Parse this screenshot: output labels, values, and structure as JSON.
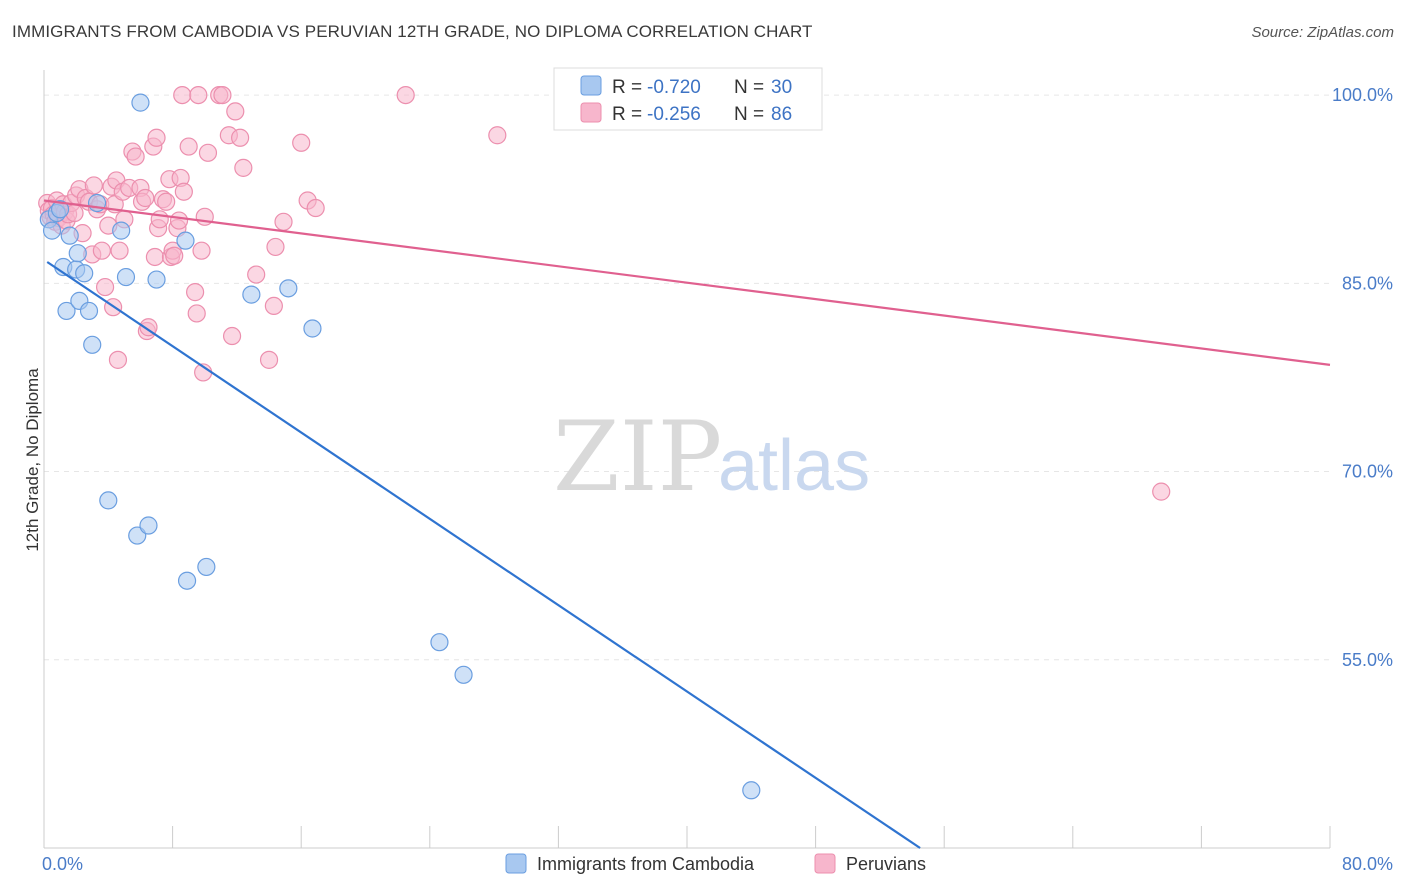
{
  "header": {
    "title": "IMMIGRANTS FROM CAMBODIA VS PERUVIAN 12TH GRADE, NO DIPLOMA CORRELATION CHART",
    "source": "Source: ZipAtlas.com"
  },
  "watermark": {
    "zip": "ZIP",
    "atlas": "atlas"
  },
  "legend_top": [
    {
      "r_label": "R = ",
      "r_value": "-0.720",
      "n_label": "N = ",
      "n_value": "30"
    },
    {
      "r_label": "R = ",
      "r_value": "-0.256",
      "n_label": "N = ",
      "n_value": "86"
    }
  ],
  "legend_bottom": [
    "Immigrants from Cambodia",
    "Peruvians"
  ],
  "colors": {
    "cambodia_fill": "#a8c8f0",
    "cambodia_stroke": "#6a9ee0",
    "cambodia_line": "#2f74d0",
    "peru_fill": "#f7b6cc",
    "peru_stroke": "#ec8fae",
    "peru_line": "#e0608f",
    "grid": "#e6e6e6",
    "tick_label": "#4a7cc8"
  },
  "chart_data": {
    "type": "scatter",
    "xlabel": "",
    "ylabel": "12th Grade, No Diploma",
    "xlim": [
      0,
      80
    ],
    "ylim": [
      40,
      102
    ],
    "x_tick_labels": [
      {
        "value": 0,
        "label": "0.0%"
      },
      {
        "value": 80,
        "label": "80.0%"
      }
    ],
    "y_tick_labels": [
      {
        "value": 100,
        "label": "100.0%"
      },
      {
        "value": 85,
        "label": "85.0%"
      },
      {
        "value": 70,
        "label": "70.0%"
      },
      {
        "value": 55,
        "label": "55.0%"
      }
    ],
    "legend_position": "top-center",
    "series": [
      {
        "name": "Immigrants from Cambodia",
        "r": -0.72,
        "n": 30,
        "trend": {
          "x": [
            0.2,
            54.5
          ],
          "y": [
            86.7,
            40
          ]
        },
        "points": [
          {
            "x": 0.3,
            "y": 90.1
          },
          {
            "x": 0.5,
            "y": 89.2
          },
          {
            "x": 0.8,
            "y": 90.6
          },
          {
            "x": 1.0,
            "y": 90.9
          },
          {
            "x": 1.2,
            "y": 86.3
          },
          {
            "x": 1.4,
            "y": 82.8
          },
          {
            "x": 1.6,
            "y": 88.8
          },
          {
            "x": 2.0,
            "y": 86.1
          },
          {
            "x": 2.1,
            "y": 87.4
          },
          {
            "x": 2.2,
            "y": 83.6
          },
          {
            "x": 2.5,
            "y": 85.8
          },
          {
            "x": 2.8,
            "y": 82.8
          },
          {
            "x": 3.0,
            "y": 80.1
          },
          {
            "x": 3.3,
            "y": 91.4
          },
          {
            "x": 4.0,
            "y": 67.7
          },
          {
            "x": 4.8,
            "y": 89.2
          },
          {
            "x": 5.1,
            "y": 85.5
          },
          {
            "x": 5.8,
            "y": 64.9
          },
          {
            "x": 6.0,
            "y": 99.4
          },
          {
            "x": 6.5,
            "y": 65.7
          },
          {
            "x": 7.0,
            "y": 85.3
          },
          {
            "x": 8.9,
            "y": 61.3
          },
          {
            "x": 8.8,
            "y": 88.4
          },
          {
            "x": 10.1,
            "y": 62.4
          },
          {
            "x": 12.9,
            "y": 84.1
          },
          {
            "x": 15.2,
            "y": 84.6
          },
          {
            "x": 16.7,
            "y": 81.4
          },
          {
            "x": 24.6,
            "y": 56.4
          },
          {
            "x": 26.1,
            "y": 53.8
          },
          {
            "x": 44.0,
            "y": 44.6
          }
        ]
      },
      {
        "name": "Peruvians",
        "r": -0.256,
        "n": 86,
        "trend": {
          "x": [
            0.0,
            80.0
          ],
          "y": [
            91.6,
            78.5
          ]
        },
        "points": [
          {
            "x": 0.2,
            "y": 91.4
          },
          {
            "x": 0.3,
            "y": 90.8
          },
          {
            "x": 0.4,
            "y": 90.3
          },
          {
            "x": 0.5,
            "y": 91.0
          },
          {
            "x": 0.6,
            "y": 90.5
          },
          {
            "x": 0.7,
            "y": 89.9
          },
          {
            "x": 0.8,
            "y": 91.6
          },
          {
            "x": 0.9,
            "y": 90.2
          },
          {
            "x": 1.0,
            "y": 90.9
          },
          {
            "x": 1.1,
            "y": 89.6
          },
          {
            "x": 1.2,
            "y": 91.3
          },
          {
            "x": 1.3,
            "y": 90.7
          },
          {
            "x": 1.4,
            "y": 90.0
          },
          {
            "x": 1.5,
            "y": 90.5
          },
          {
            "x": 1.7,
            "y": 91.4
          },
          {
            "x": 1.9,
            "y": 90.6
          },
          {
            "x": 2.0,
            "y": 92.0
          },
          {
            "x": 2.2,
            "y": 92.5
          },
          {
            "x": 2.4,
            "y": 89.0
          },
          {
            "x": 2.6,
            "y": 91.8
          },
          {
            "x": 2.8,
            "y": 91.5
          },
          {
            "x": 3.0,
            "y": 87.3
          },
          {
            "x": 3.1,
            "y": 92.8
          },
          {
            "x": 3.3,
            "y": 90.9
          },
          {
            "x": 3.5,
            "y": 91.3
          },
          {
            "x": 3.6,
            "y": 87.6
          },
          {
            "x": 3.8,
            "y": 84.7
          },
          {
            "x": 4.0,
            "y": 89.6
          },
          {
            "x": 4.2,
            "y": 92.7
          },
          {
            "x": 4.3,
            "y": 83.1
          },
          {
            "x": 4.4,
            "y": 91.3
          },
          {
            "x": 4.5,
            "y": 93.2
          },
          {
            "x": 4.6,
            "y": 78.9
          },
          {
            "x": 4.7,
            "y": 87.6
          },
          {
            "x": 4.9,
            "y": 92.3
          },
          {
            "x": 5.0,
            "y": 90.1
          },
          {
            "x": 5.3,
            "y": 92.6
          },
          {
            "x": 5.5,
            "y": 95.5
          },
          {
            "x": 5.7,
            "y": 95.1
          },
          {
            "x": 6.0,
            "y": 92.6
          },
          {
            "x": 6.1,
            "y": 91.5
          },
          {
            "x": 6.3,
            "y": 91.8
          },
          {
            "x": 6.4,
            "y": 81.2
          },
          {
            "x": 6.5,
            "y": 81.5
          },
          {
            "x": 6.8,
            "y": 95.9
          },
          {
            "x": 6.9,
            "y": 87.1
          },
          {
            "x": 7.0,
            "y": 96.6
          },
          {
            "x": 7.1,
            "y": 89.4
          },
          {
            "x": 7.2,
            "y": 90.1
          },
          {
            "x": 7.4,
            "y": 91.7
          },
          {
            "x": 7.6,
            "y": 91.5
          },
          {
            "x": 7.8,
            "y": 93.3
          },
          {
            "x": 7.9,
            "y": 87.1
          },
          {
            "x": 8.0,
            "y": 87.6
          },
          {
            "x": 8.1,
            "y": 87.2
          },
          {
            "x": 8.3,
            "y": 89.4
          },
          {
            "x": 8.4,
            "y": 90.0
          },
          {
            "x": 8.5,
            "y": 93.4
          },
          {
            "x": 8.7,
            "y": 92.3
          },
          {
            "x": 8.6,
            "y": 100.0
          },
          {
            "x": 9.0,
            "y": 95.9
          },
          {
            "x": 9.4,
            "y": 84.3
          },
          {
            "x": 9.5,
            "y": 82.6
          },
          {
            "x": 9.6,
            "y": 100.0
          },
          {
            "x": 9.8,
            "y": 87.6
          },
          {
            "x": 9.9,
            "y": 77.9
          },
          {
            "x": 10.0,
            "y": 90.3
          },
          {
            "x": 10.2,
            "y": 95.4
          },
          {
            "x": 10.9,
            "y": 100.0
          },
          {
            "x": 11.1,
            "y": 100.0
          },
          {
            "x": 11.5,
            "y": 96.8
          },
          {
            "x": 11.7,
            "y": 80.8
          },
          {
            "x": 11.9,
            "y": 98.7
          },
          {
            "x": 12.2,
            "y": 96.6
          },
          {
            "x": 12.4,
            "y": 94.2
          },
          {
            "x": 13.2,
            "y": 85.7
          },
          {
            "x": 14.0,
            "y": 78.9
          },
          {
            "x": 14.3,
            "y": 83.2
          },
          {
            "x": 14.4,
            "y": 87.9
          },
          {
            "x": 14.9,
            "y": 89.9
          },
          {
            "x": 16.0,
            "y": 96.2
          },
          {
            "x": 16.4,
            "y": 91.6
          },
          {
            "x": 16.9,
            "y": 91.0
          },
          {
            "x": 22.5,
            "y": 100.0
          },
          {
            "x": 28.2,
            "y": 96.8
          },
          {
            "x": 69.5,
            "y": 68.4
          }
        ]
      }
    ]
  }
}
